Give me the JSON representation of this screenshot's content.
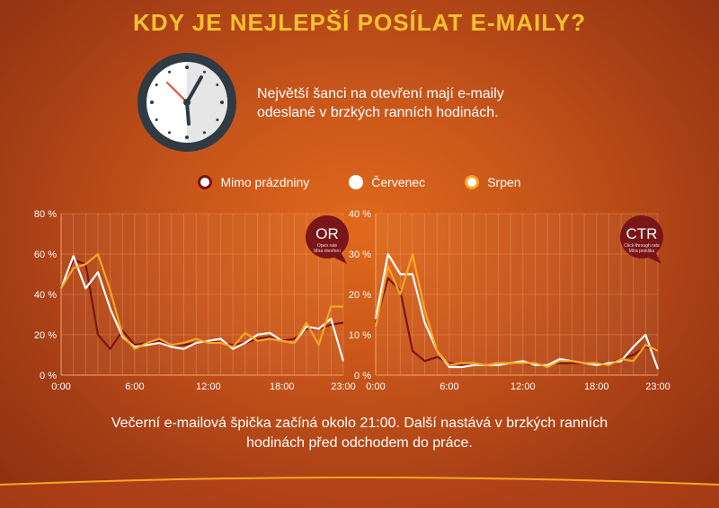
{
  "title": "KDY JE NEJLEPŠÍ POSÍLAT E-MAILY?",
  "intro_lines": [
    "Největší šanci na otevření mají e-maily",
    "odeslané v brzkých ranních hodinách."
  ],
  "legend": [
    {
      "label": "Mimo prázdniny",
      "color": "#7a1518"
    },
    {
      "label": "Červenec",
      "color": "#ffffff"
    },
    {
      "label": "Srpen",
      "color": "#f5a623"
    }
  ],
  "footer_lines": [
    "Večerní e-mailová špička začíná okolo 21:00. Další nastává v brzkých ranních",
    "hodinách před odchodem do práce."
  ],
  "colors": {
    "title": "#f7c12e",
    "mimo": "#7a1518",
    "cervenec": "#ffffff",
    "srpen": "#f5a623",
    "badge": "#7a1518"
  },
  "chart_data": [
    {
      "type": "line",
      "badge": {
        "main": "OR",
        "sub1": "Open rate",
        "sub2": "Míra otevření"
      },
      "x": [
        0,
        1,
        2,
        3,
        4,
        5,
        6,
        7,
        8,
        9,
        10,
        11,
        12,
        13,
        14,
        15,
        16,
        17,
        18,
        19,
        20,
        21,
        22,
        23
      ],
      "xticks": [
        "0:00",
        "6:00",
        "12:00",
        "18:00",
        "23:00"
      ],
      "xtick_values": [
        0,
        6,
        12,
        18,
        23
      ],
      "ylim": [
        0,
        80
      ],
      "yticks": [
        0,
        20,
        40,
        60,
        80
      ],
      "ytick_labels": [
        "0 %",
        "20 %",
        "40 %",
        "60 %",
        "80 %"
      ],
      "series": [
        {
          "name": "Mimo prázdniny",
          "values": [
            44,
            57,
            55,
            20,
            13,
            22,
            15,
            16,
            17,
            15,
            15,
            16,
            17,
            16,
            15,
            16,
            18,
            19,
            17,
            18,
            23,
            23,
            25,
            26
          ]
        },
        {
          "name": "Červenec",
          "values": [
            43,
            59,
            43,
            51,
            33,
            19,
            14,
            15,
            16,
            14,
            13,
            16,
            17,
            18,
            13,
            16,
            20,
            21,
            17,
            16,
            24,
            23,
            28,
            7
          ]
        },
        {
          "name": "Srpen",
          "values": [
            43,
            53,
            55,
            60,
            42,
            20,
            13,
            16,
            18,
            15,
            16,
            18,
            16,
            16,
            14,
            21,
            17,
            18,
            17,
            16,
            26,
            15,
            34,
            34
          ]
        }
      ]
    },
    {
      "type": "line",
      "badge": {
        "main": "CTR",
        "sub1": "Click-through rate",
        "sub2": "Míra prokliku"
      },
      "x": [
        0,
        1,
        2,
        3,
        4,
        5,
        6,
        7,
        8,
        9,
        10,
        11,
        12,
        13,
        14,
        15,
        16,
        17,
        18,
        19,
        20,
        21,
        22,
        23
      ],
      "xticks": [
        "0:00",
        "6:00",
        "12:00",
        "18:00",
        "23:00"
      ],
      "xtick_values": [
        0,
        6,
        12,
        18,
        23
      ],
      "ylim": [
        0,
        40
      ],
      "yticks": [
        0,
        10,
        20,
        30,
        40
      ],
      "ytick_labels": [
        "0 %",
        "10 %",
        "20 %",
        "30 %",
        "40 %"
      ],
      "series": [
        {
          "name": "Mimo prázdniny",
          "values": [
            13,
            24,
            21,
            6,
            3.5,
            4.5,
            3,
            2.5,
            2.5,
            2.5,
            2.5,
            3,
            3,
            2.5,
            2.5,
            3,
            3,
            3,
            3,
            3,
            4,
            5,
            7,
            6
          ]
        },
        {
          "name": "Červenec",
          "values": [
            14,
            30,
            25,
            25,
            13,
            6,
            2,
            2,
            2.5,
            2.5,
            2.5,
            3,
            3.5,
            2.5,
            2.5,
            4,
            3.5,
            3,
            2.5,
            3,
            3.5,
            7,
            10,
            1.5
          ]
        },
        {
          "name": "Srpen",
          "values": [
            12,
            27,
            20,
            30,
            16,
            6,
            2.5,
            3,
            3,
            2.5,
            3,
            3,
            3,
            3,
            2,
            3.5,
            3.5,
            3,
            3,
            2.5,
            4,
            3.5,
            7.5,
            6
          ]
        }
      ]
    }
  ]
}
